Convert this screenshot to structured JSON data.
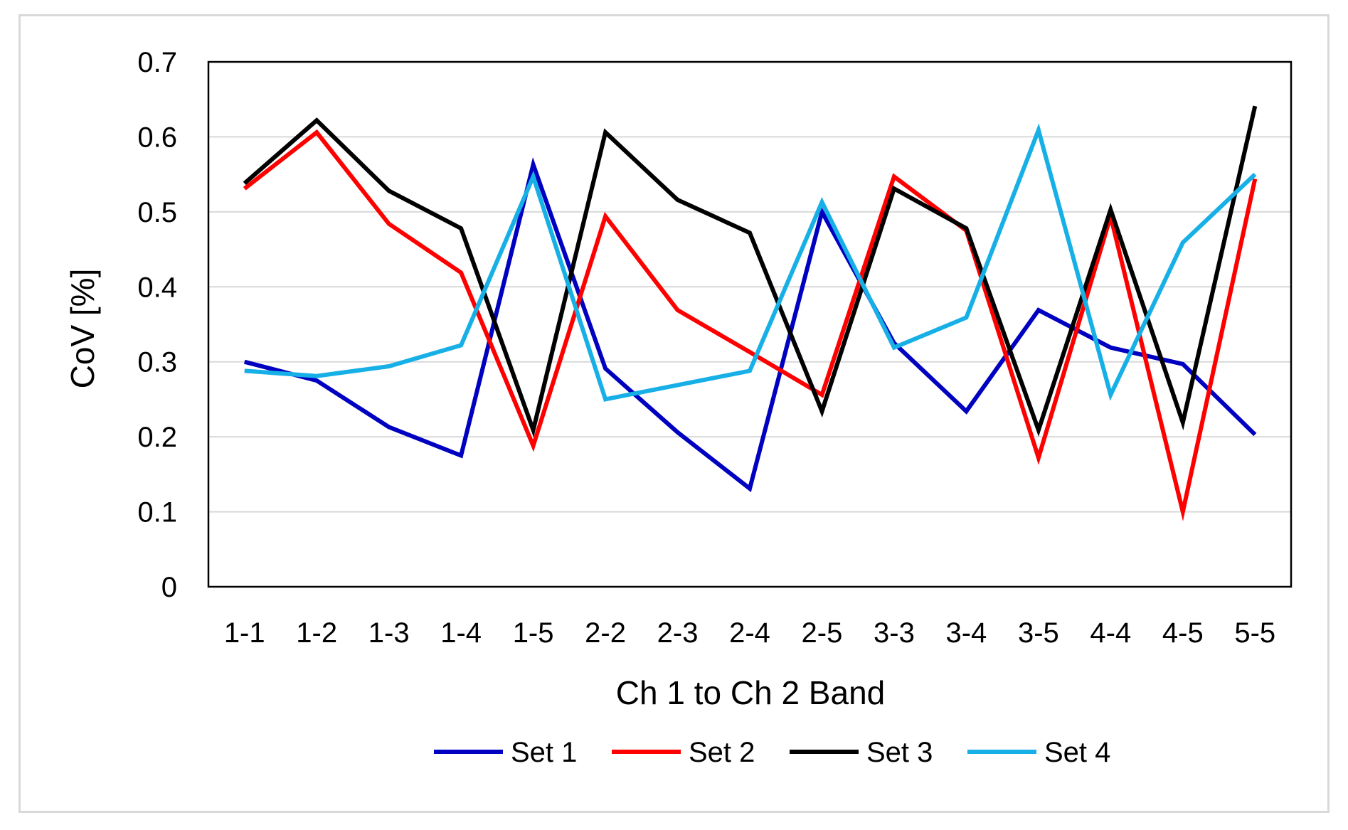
{
  "chart_data": {
    "type": "line",
    "title": "",
    "xlabel": "Ch 1 to Ch 2 Band",
    "ylabel": "CoV [%]",
    "ylim": [
      0,
      0.7
    ],
    "yticks": [
      "0",
      "0.1",
      "0.2",
      "0.3",
      "0.4",
      "0.5",
      "0.6",
      "0.7"
    ],
    "grid": true,
    "legend_position": "bottom",
    "categories": [
      "1-1",
      "1-2",
      "1-3",
      "1-4",
      "1-5",
      "2-2",
      "2-3",
      "2-4",
      "2-5",
      "3-3",
      "3-4",
      "3-5",
      "4-4",
      "4-5",
      "5-5"
    ],
    "series": [
      {
        "name": "Set 1",
        "color": "#0000c0",
        "values": [
          0.3,
          0.275,
          0.213,
          0.175,
          0.563,
          0.291,
          0.206,
          0.131,
          0.5,
          0.325,
          0.234,
          0.369,
          0.319,
          0.297,
          0.203
        ]
      },
      {
        "name": "Set 2",
        "color": "#ff0000",
        "values": [
          0.531,
          0.606,
          0.484,
          0.419,
          0.188,
          0.494,
          0.369,
          0.313,
          0.256,
          0.547,
          0.475,
          0.172,
          0.494,
          0.1,
          0.544
        ]
      },
      {
        "name": "Set 3",
        "color": "#000000",
        "values": [
          0.538,
          0.622,
          0.528,
          0.478,
          0.209,
          0.606,
          0.516,
          0.472,
          0.234,
          0.531,
          0.478,
          0.209,
          0.503,
          0.219,
          0.641
        ]
      },
      {
        "name": "Set 4",
        "color": "#17b0e6",
        "values": [
          0.288,
          0.281,
          0.294,
          0.322,
          0.547,
          0.25,
          0.269,
          0.288,
          0.513,
          0.319,
          0.359,
          0.609,
          0.256,
          0.459,
          0.55
        ]
      }
    ]
  }
}
